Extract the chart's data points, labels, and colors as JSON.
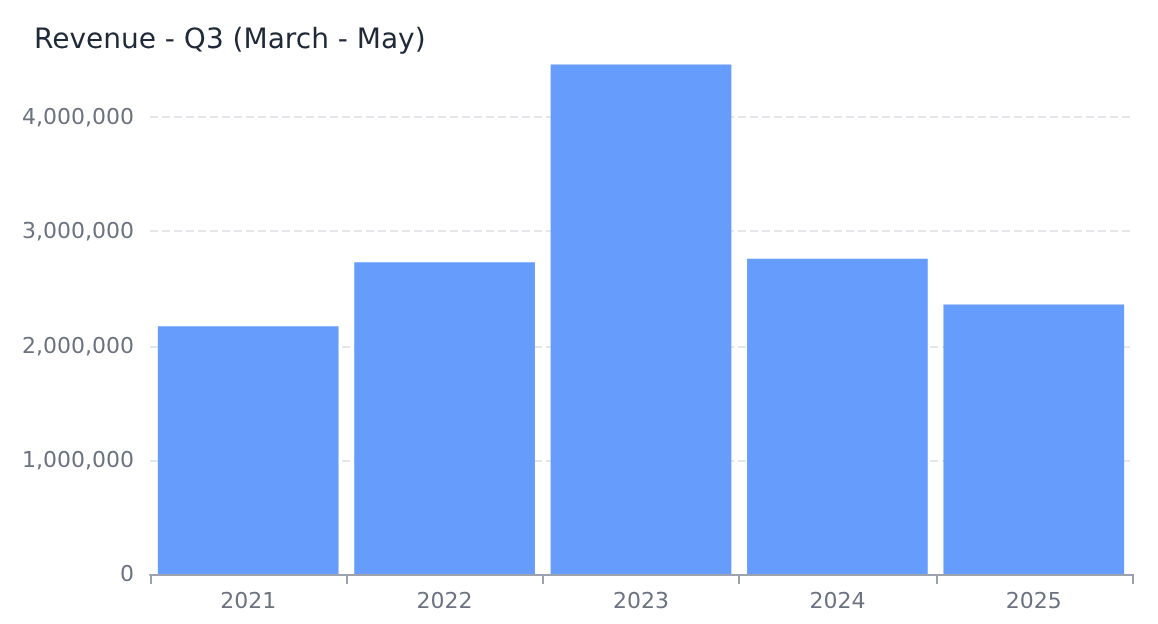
{
  "chart_data": {
    "type": "bar",
    "title": "Revenue - Q3 (March - May)",
    "categories": [
      "2021",
      "2022",
      "2023",
      "2024",
      "2025"
    ],
    "values": [
      2170000,
      2730000,
      4460000,
      2760000,
      2360000
    ],
    "color": "#669cfb",
    "ylim": [
      0,
      4500000
    ],
    "yticks": [
      0,
      {
        "value": 1000000,
        "label": "1,000,000"
      },
      {
        "value": 2000000,
        "label": "2,000,000"
      },
      {
        "value": 3000000,
        "label": "3,000,000"
      },
      {
        "value": 4000000,
        "label": "4,000,000"
      }
    ],
    "grid": "y"
  }
}
